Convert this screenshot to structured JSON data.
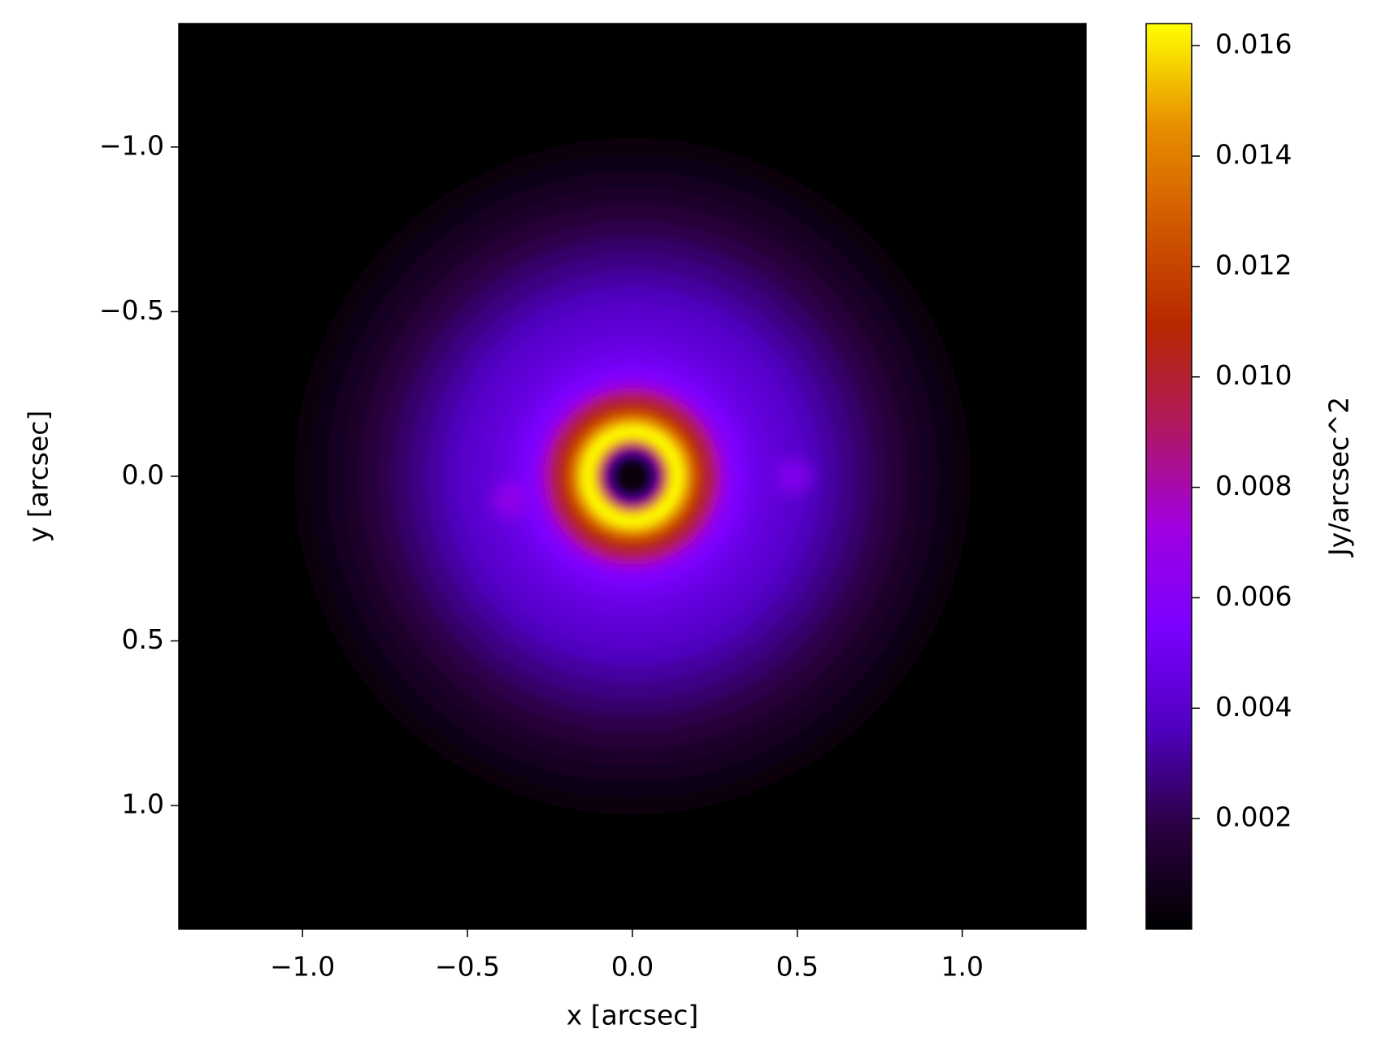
{
  "chart_data": {
    "type": "heatmap",
    "x_label": "x [arcsec]",
    "y_label": "y [arcsec]",
    "colorbar_label": "Jy/arcsec^2",
    "xlim": [
      -1.375,
      1.375
    ],
    "ylim": [
      1.375,
      -1.375
    ],
    "xticks": [
      {
        "value": -1,
        "label": "−1.0"
      },
      {
        "value": -0.5,
        "label": "−0.5"
      },
      {
        "value": 0,
        "label": "0.0"
      },
      0.5,
      {
        "value": 1,
        "label": "1.0"
      }
    ],
    "yticks": [
      {
        "value": -1,
        "label": "−1.0"
      },
      {
        "value": -0.5,
        "label": "−0.5"
      },
      {
        "value": 0,
        "label": "0.0"
      },
      0.5,
      {
        "value": 1,
        "label": "1.0"
      }
    ],
    "clim": [
      0,
      0.0164
    ],
    "cticks": [
      0.002,
      0.004,
      0.006,
      0.008,
      {
        "value": 0.01,
        "label": "0.010"
      },
      0.012,
      0.014,
      0.016
    ],
    "colormap": [
      "#000000",
      "#2a0040",
      "#5000c0",
      "#7a00ff",
      "#a000e0",
      "#b01860",
      "#b82800",
      "#d05800",
      "#e89000",
      "#ffff00"
    ],
    "radial_profile": {
      "r": [
        0,
        0.03,
        0.05,
        0.07,
        0.09,
        0.11,
        0.13,
        0.15,
        0.17,
        0.19,
        0.21,
        0.23,
        0.25,
        0.27,
        0.29,
        0.32,
        0.36,
        0.4,
        0.45,
        0.5,
        0.55,
        0.6,
        0.65,
        0.7,
        0.75,
        0.8,
        0.85,
        0.9,
        0.95,
        1.0,
        1.05,
        1.07
      ],
      "values": [
        0.0003,
        0.0003,
        0.0008,
        0.003,
        0.009,
        0.015,
        0.0164,
        0.016,
        0.0145,
        0.0125,
        0.011,
        0.0098,
        0.0088,
        0.0075,
        0.0062,
        0.0055,
        0.005,
        0.0046,
        0.0043,
        0.004,
        0.0036,
        0.0032,
        0.0028,
        0.0024,
        0.002,
        0.0016,
        0.0012,
        0.0009,
        0.0006,
        0.0003,
        0.0001,
        5e-05
      ]
    },
    "sources": {
      "x": [
        0.49,
        -0.37
      ],
      "y": [
        0,
        0.07
      ],
      "values": [
        0.0062,
        0.0068
      ]
    }
  }
}
